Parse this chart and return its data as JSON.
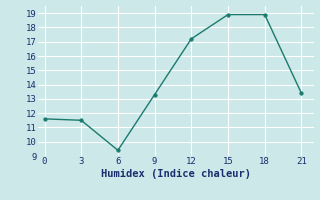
{
  "x": [
    0,
    3,
    6,
    9,
    12,
    15,
    18,
    21
  ],
  "y": [
    11.6,
    11.5,
    9.4,
    13.3,
    17.2,
    18.9,
    18.9,
    13.4
  ],
  "xlabel": "Humidex (Indice chaleur)",
  "xlim": [
    -0.5,
    22
  ],
  "ylim": [
    9,
    19.5
  ],
  "yticks": [
    9,
    10,
    11,
    12,
    13,
    14,
    15,
    16,
    17,
    18,
    19
  ],
  "xticks": [
    0,
    3,
    6,
    9,
    12,
    15,
    18,
    21
  ],
  "line_color": "#1a7a6e",
  "marker_color": "#1a7a6e",
  "bg_color": "#cce8e8",
  "grid_color": "#ffffff",
  "font_color": "#1a2e6e",
  "tick_fontsize": 6.5,
  "xlabel_fontsize": 7.5
}
